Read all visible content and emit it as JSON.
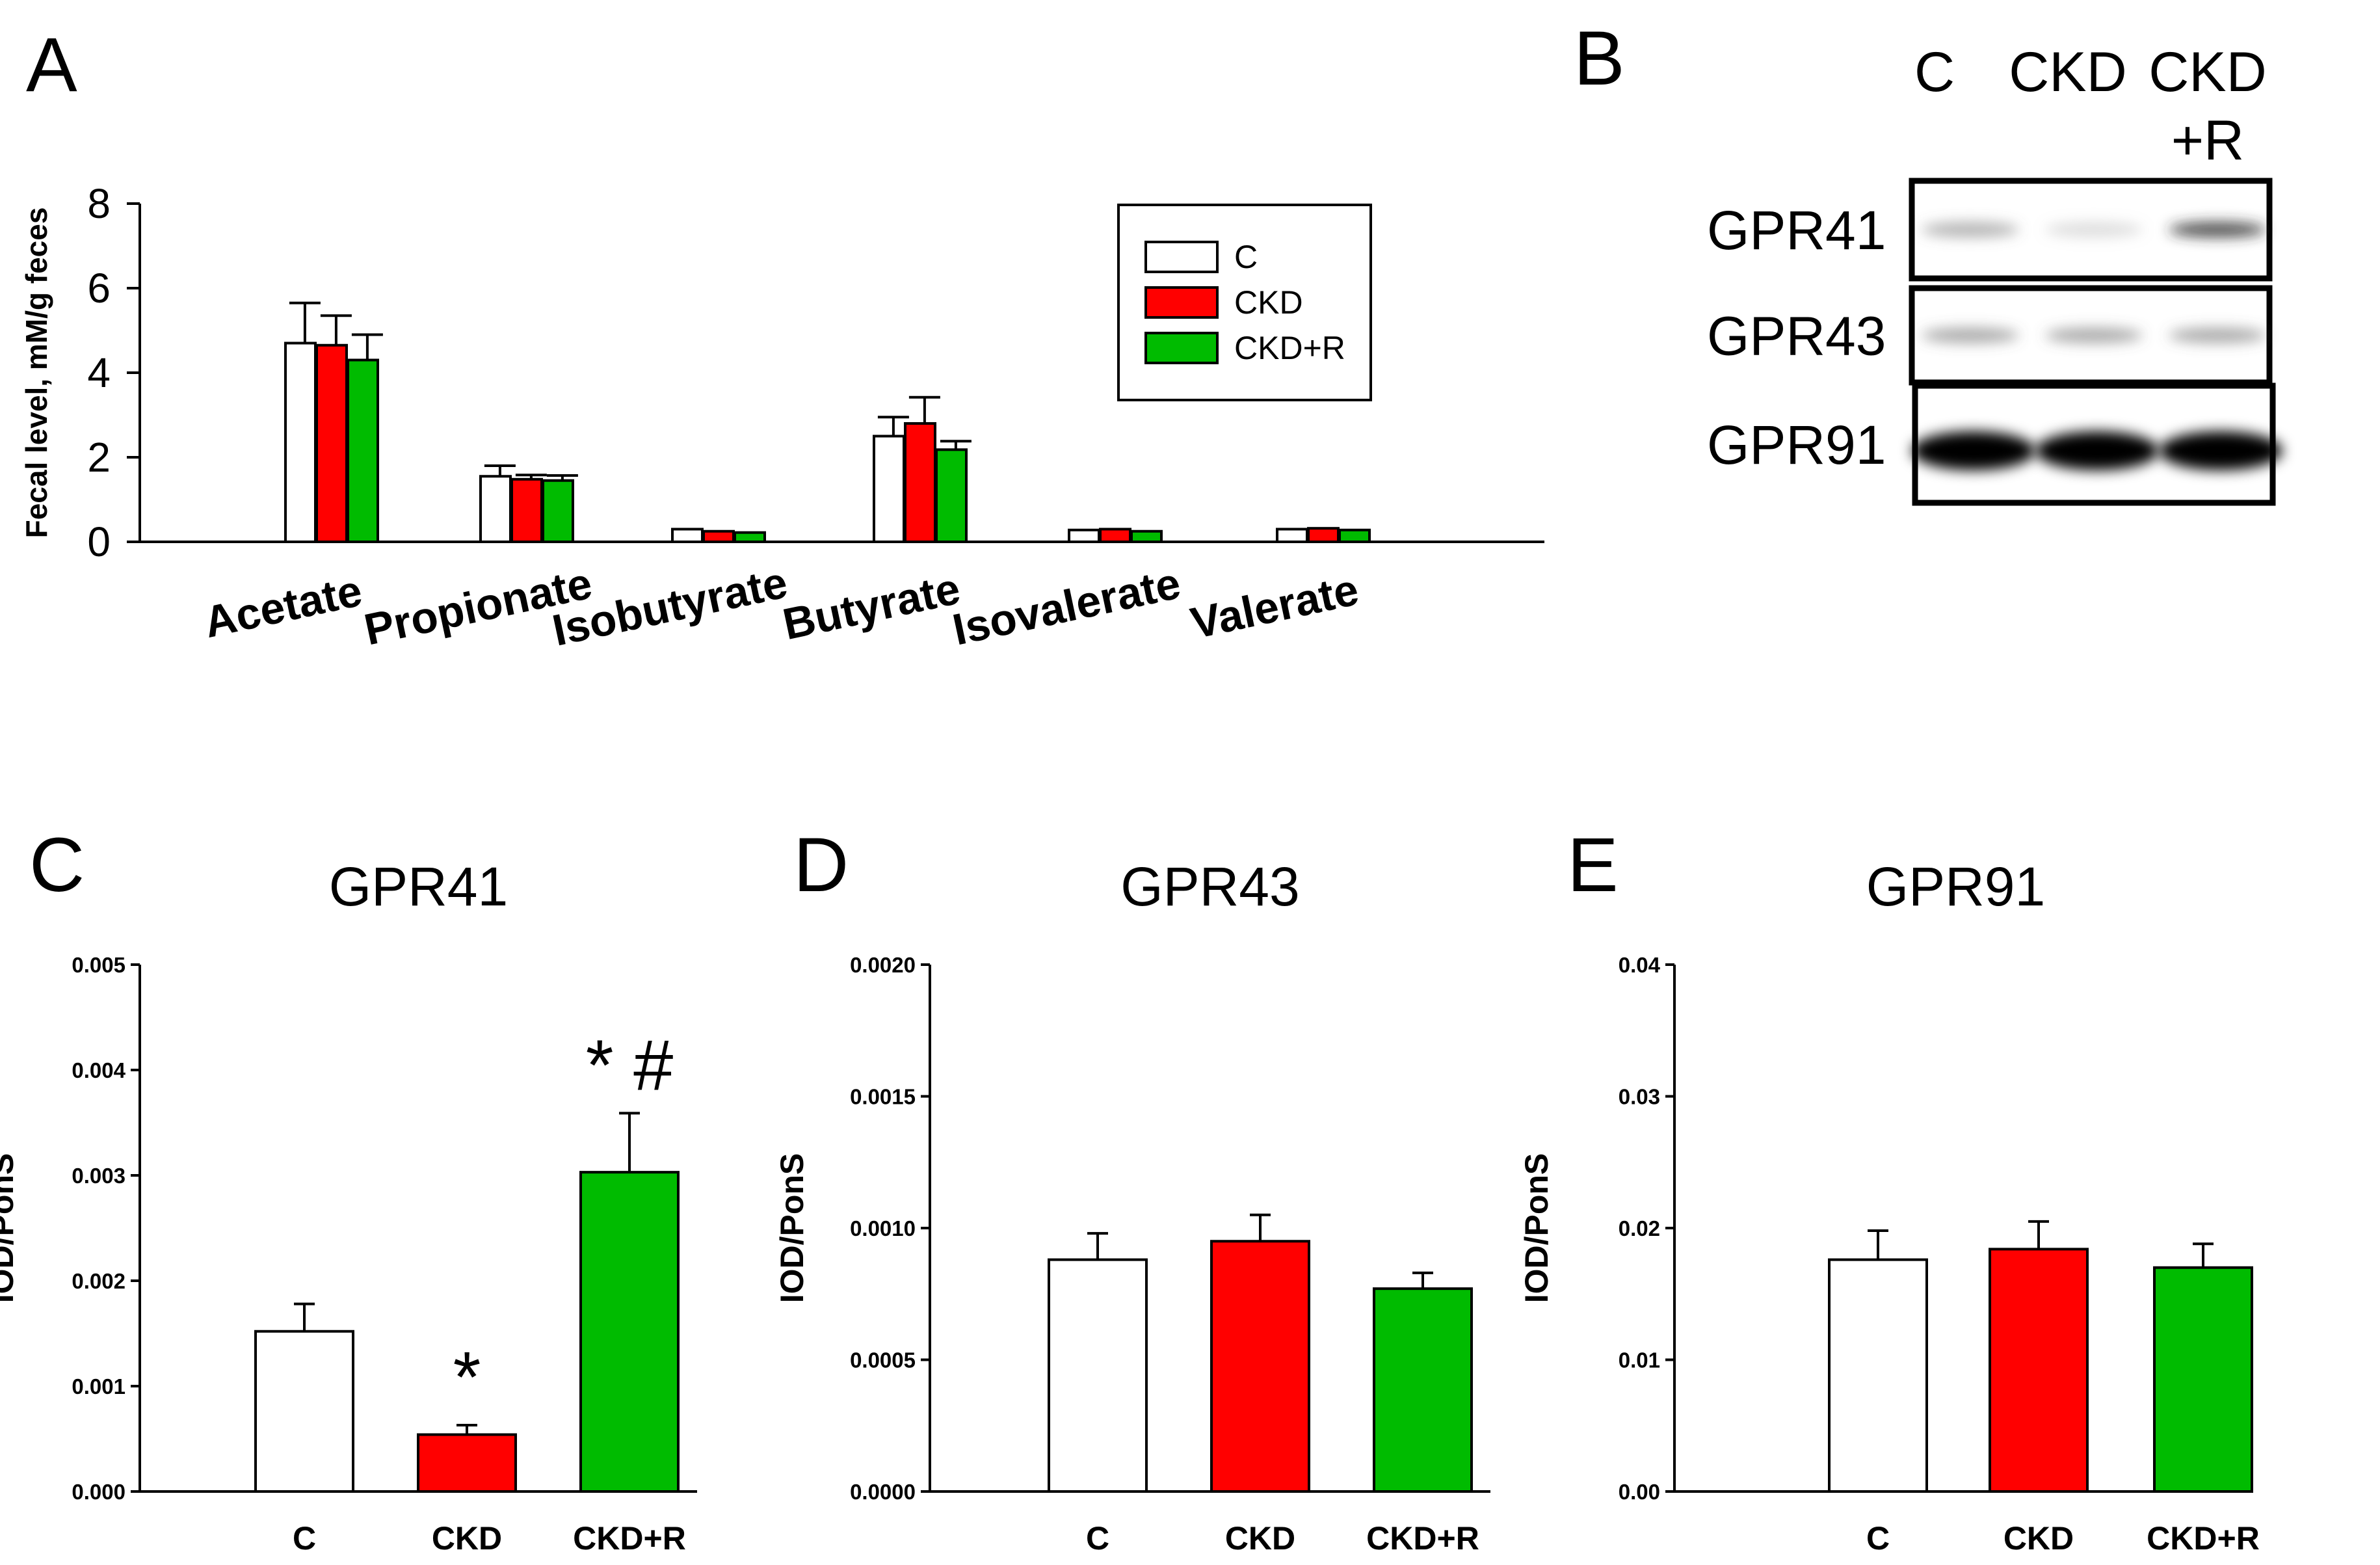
{
  "colors": {
    "C": "#ffffff",
    "CKD": "#ff0000",
    "CKD+R": "#00bb00",
    "outline": "#000000"
  },
  "panels": {
    "A": {
      "letter": "A"
    },
    "B": {
      "letter": "B"
    },
    "C": {
      "letter": "C"
    },
    "D": {
      "letter": "D"
    },
    "E": {
      "letter": "E"
    }
  },
  "blot": {
    "lane_labels": [
      "C",
      "CKD",
      "CKD\n+R"
    ],
    "lane_label_lines": [
      [
        "C"
      ],
      [
        "CKD"
      ],
      [
        "CKD",
        "+R"
      ]
    ],
    "rows": [
      {
        "label": "GPR41",
        "intensity": [
          0.35,
          0.1,
          0.75
        ]
      },
      {
        "label": "GPR43",
        "intensity": [
          0.4,
          0.4,
          0.4
        ]
      },
      {
        "label": "GPR91",
        "intensity": [
          1.0,
          1.0,
          1.0
        ]
      }
    ]
  },
  "chart_data": [
    {
      "id": "A",
      "type": "bar",
      "title": "",
      "xlabel": "",
      "ylabel": "Fecal level, mM/g feces",
      "categories": [
        "Acetate",
        "Propionate",
        "Isobutyrate",
        "Butyrate",
        "Isovalerate",
        "Valerate"
      ],
      "series": [
        {
          "name": "C",
          "values": [
            4.7,
            1.55,
            0.3,
            2.5,
            0.28,
            0.3
          ],
          "errors": [
            0.95,
            0.25,
            0.0,
            0.45,
            0.0,
            0.0
          ]
        },
        {
          "name": "CKD",
          "values": [
            4.65,
            1.48,
            0.25,
            2.8,
            0.3,
            0.32
          ],
          "errors": [
            0.7,
            0.1,
            0.0,
            0.62,
            0.0,
            0.0
          ]
        },
        {
          "name": "CKD+R",
          "values": [
            4.3,
            1.45,
            0.22,
            2.18,
            0.25,
            0.28
          ],
          "errors": [
            0.6,
            0.12,
            0.0,
            0.2,
            0.0,
            0.0
          ]
        }
      ],
      "ylim": [
        0,
        8
      ],
      "yticks": [
        0,
        2,
        4,
        6,
        8
      ],
      "ytick_labels": [
        "0",
        "2",
        "4",
        "6",
        "8"
      ],
      "legend": "top-right",
      "grid": false
    },
    {
      "id": "C",
      "type": "bar",
      "title": "GPR41",
      "xlabel": "",
      "ylabel": "IOD/PonS",
      "categories": [
        "C",
        "CKD",
        "CKD+R"
      ],
      "values": [
        0.00152,
        0.00054,
        0.00303
      ],
      "errors": [
        0.00026,
        9e-05,
        0.00056
      ],
      "annotations": [
        "",
        "*",
        "* #"
      ],
      "ylim": [
        0,
        0.005
      ],
      "yticks": [
        0,
        0.001,
        0.002,
        0.003,
        0.004,
        0.005
      ],
      "ytick_labels": [
        "0.000",
        "0.001",
        "0.002",
        "0.003",
        "0.004",
        "0.005"
      ],
      "grid": false
    },
    {
      "id": "D",
      "type": "bar",
      "title": "GPR43",
      "xlabel": "",
      "ylabel": "IOD/PonS",
      "categories": [
        "C",
        "CKD",
        "CKD+R"
      ],
      "values": [
        0.00088,
        0.00095,
        0.00077
      ],
      "errors": [
        0.0001,
        0.0001,
        6e-05
      ],
      "annotations": [
        "",
        "",
        ""
      ],
      "ylim": [
        0,
        0.002
      ],
      "yticks": [
        0,
        0.0005,
        0.001,
        0.0015,
        0.002
      ],
      "ytick_labels": [
        "0.0000",
        "0.0005",
        "0.0010",
        "0.0015",
        "0.0020"
      ],
      "grid": false
    },
    {
      "id": "E",
      "type": "bar",
      "title": "GPR91",
      "xlabel": "",
      "ylabel": "IOD/PonS",
      "categories": [
        "C",
        "CKD",
        "CKD+R"
      ],
      "values": [
        0.0176,
        0.0184,
        0.017
      ],
      "errors": [
        0.0022,
        0.0021,
        0.0018
      ],
      "annotations": [
        "",
        "",
        ""
      ],
      "ylim": [
        0,
        0.04
      ],
      "yticks": [
        0,
        0.01,
        0.02,
        0.03,
        0.04
      ],
      "ytick_labels": [
        "0.00",
        "0.01",
        "0.02",
        "0.03",
        "0.04"
      ],
      "grid": false
    }
  ]
}
